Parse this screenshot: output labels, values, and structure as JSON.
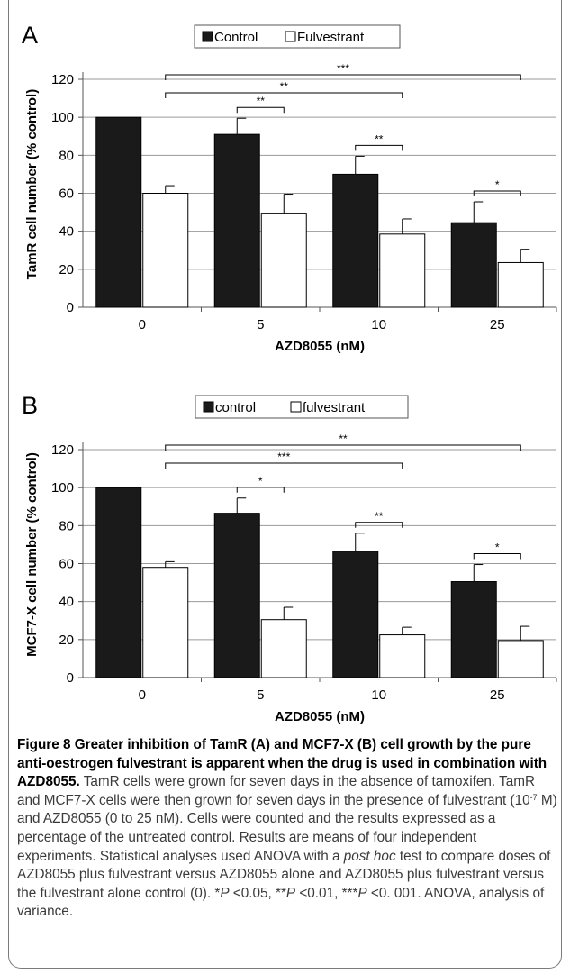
{
  "chart_data": [
    {
      "panel": "A",
      "type": "bar",
      "categories": [
        "0",
        "5",
        "10",
        "25"
      ],
      "series": [
        {
          "name": "Control",
          "values": [
            100,
            91,
            70,
            44.5
          ],
          "errors": [
            0,
            8.5,
            9.5,
            11
          ],
          "color": "#1a1a1a"
        },
        {
          "name": "Fulvestrant",
          "values": [
            60,
            49.5,
            38.5,
            23.5
          ],
          "errors": [
            4,
            10,
            8,
            7
          ],
          "color": "#ffffff"
        }
      ],
      "xlabel": "AZD8055 (nM)",
      "ylabel": "TamR cell number (% control)",
      "ylim": [
        0,
        120
      ],
      "yticks": [
        0,
        20,
        40,
        60,
        80,
        100,
        120
      ],
      "grid": true,
      "legend": "top-center",
      "significance": [
        {
          "type": "within",
          "group": 1,
          "label": "**"
        },
        {
          "type": "within",
          "group": 2,
          "label": "**"
        },
        {
          "type": "within",
          "group": 3,
          "label": "*"
        },
        {
          "type": "vs-fulvestrant-0",
          "to": 2,
          "label": "**"
        },
        {
          "type": "vs-fulvestrant-0",
          "to": 3,
          "label": "***"
        }
      ]
    },
    {
      "panel": "B",
      "type": "bar",
      "categories": [
        "0",
        "5",
        "10",
        "25"
      ],
      "series": [
        {
          "name": "control",
          "values": [
            100,
            86.5,
            66.5,
            50.5
          ],
          "errors": [
            0,
            8,
            9.5,
            9
          ],
          "color": "#1a1a1a"
        },
        {
          "name": "fulvestrant",
          "values": [
            58,
            30.5,
            22.5,
            19.5
          ],
          "errors": [
            3,
            6.5,
            4,
            7.5
          ],
          "color": "#ffffff"
        }
      ],
      "xlabel": "AZD8055 (nM)",
      "ylabel": "MCF7-X cell number (% control)",
      "ylim": [
        0,
        120
      ],
      "yticks": [
        0,
        20,
        40,
        60,
        80,
        100,
        120
      ],
      "grid": true,
      "legend": "top-center",
      "significance": [
        {
          "type": "within",
          "group": 1,
          "label": "*"
        },
        {
          "type": "within",
          "group": 2,
          "label": "**"
        },
        {
          "type": "within",
          "group": 3,
          "label": "*"
        },
        {
          "type": "vs-fulvestrant-0",
          "to": 2,
          "label": "***"
        },
        {
          "type": "vs-fulvestrant-0",
          "to": 3,
          "label": "**"
        }
      ]
    }
  ],
  "caption": {
    "heading": "Figure 8 Greater inhibition of TamR (A) and MCF7-X (B) cell growth by the pure anti-oestrogen fulvestrant is apparent when the drug is used in combination with AZD8055.",
    "body_1": " TamR cells were grown for seven days in the absence of tamoxifen. TamR and MCF7-X cells were then grown for seven days in the presence of fulvestrant (10",
    "exponent": "-7",
    "body_2": " M) and AZD8055 (0 to 25 nM). Cells were counted and the results expressed as a percentage of the untreated control. Results are means of four independent experiments. Statistical analyses used ANOVA with a ",
    "post_hoc": "post hoc",
    "body_3": " test to compare doses of AZD8055 plus fulvestrant versus AZD8055 alone and AZD8055 plus fulvestrant versus the fulvestrant alone control (0). *",
    "p1": "P",
    "t1": " <0.05, **",
    "p2": "P",
    "t2": " <0.01, ***",
    "p3": "P",
    "t3": " <0. 001. ANOVA, analysis of variance."
  }
}
